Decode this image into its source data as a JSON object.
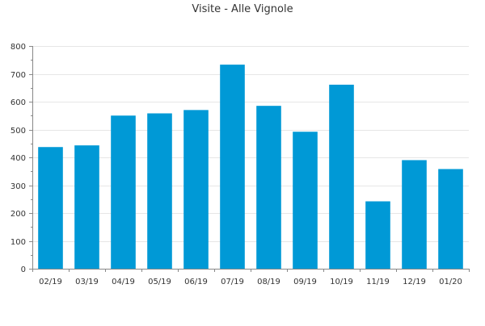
{
  "chart_data": {
    "type": "bar",
    "title": "Visite - Alle Vignole",
    "xlabel": "",
    "ylabel": "",
    "categories": [
      "02/19",
      "03/19",
      "04/19",
      "05/19",
      "06/19",
      "07/19",
      "08/19",
      "09/19",
      "10/19",
      "11/19",
      "12/19",
      "01/20"
    ],
    "series": [
      {
        "values": [
          437,
          443,
          550,
          558,
          570,
          733,
          585,
          492,
          661,
          242,
          390,
          358
        ],
        "color": "#0099d6"
      }
    ],
    "ylim": [
      0,
      800
    ],
    "yticks": [
      0,
      100,
      200,
      300,
      400,
      500,
      600,
      700,
      800
    ],
    "grid": true,
    "legend": "none"
  },
  "colors": {
    "bar": "#0099d6",
    "grid": "#e6e6e6",
    "axis": "#888888",
    "text": "#333333"
  }
}
